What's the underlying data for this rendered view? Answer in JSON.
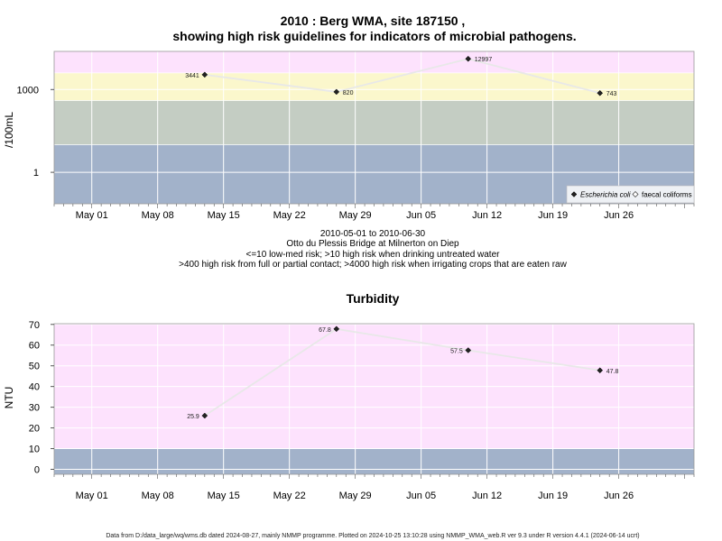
{
  "colors": {
    "pink": "#fde2fd",
    "yellow": "#fbf7cc",
    "greygreen": "#c4cdc3",
    "blue": "#a2b2ca",
    "line": "#e8e8e8"
  },
  "x_ticks": [
    "May 01",
    "May 08",
    "May 15",
    "May 22",
    "May 29",
    "Jun 05",
    "Jun 12",
    "Jun 19",
    "Jun 26"
  ],
  "caption": {
    "line1": "2010-05-01 to 2010-06-30",
    "line2": "Otto du Plessis Bridge at Milnerton on Diep",
    "line3": "<=10 low-med risk; >10 high risk when drinking untreated water",
    "line4": ">400 high risk from full or partial contact; >4000 high risk when irrigating crops that are eaten raw"
  },
  "footer": "Data from D:/data_large/wq/wms.db dated 2024-08-27, mainly NMMP programme. Plotted on 2024-10-25 13:10:28 using NMMP_WMA_web.R ver 9.3 under R version 4.4.1 (2024-06-14 ucrt)",
  "chart_data": [
    {
      "type": "line",
      "title_line1": "2010 : Berg WMA, site 187150 ,",
      "title_line2": "showing high risk guidelines for indicators of microbial pathogens.",
      "ylabel": "/100mL",
      "yscale": "log",
      "y_ticks": [
        "1",
        "1000"
      ],
      "x_date_range": [
        "2010-04-27",
        "2010-07-04"
      ],
      "bands": [
        {
          "from": 4000,
          "color": "pink"
        },
        {
          "from": 400,
          "to": 4000,
          "color": "yellow"
        },
        {
          "from": 10,
          "to": 400,
          "color": "greygreen"
        },
        {
          "to": 10,
          "color": "blue"
        }
      ],
      "series": [
        {
          "name": "Escherichia coli",
          "marker": "filled-diamond",
          "points": [
            {
              "x": "2010-05-13",
              "y": 3441,
              "label": "3441"
            },
            {
              "x": "2010-05-27",
              "y": 820,
              "label": "820"
            },
            {
              "x": "2010-06-10",
              "y": 12997,
              "label": "12997"
            },
            {
              "x": "2010-06-24",
              "y": 743,
              "label": "743"
            }
          ]
        },
        {
          "name": "faecal coliforms",
          "marker": "open-diamond",
          "points": []
        }
      ],
      "legend": {
        "position": "bottom-right",
        "items": [
          "Escherichia coli",
          "faecal coliforms"
        ]
      },
      "grid": true
    },
    {
      "type": "line",
      "title": "Turbidity",
      "ylabel": "NTU",
      "y_ticks": [
        "0",
        "10",
        "20",
        "30",
        "40",
        "50",
        "60",
        "70"
      ],
      "ylim": [
        -2,
        72
      ],
      "x_date_range": [
        "2010-04-27",
        "2010-07-04"
      ],
      "bands": [
        {
          "from": 10,
          "color": "pink"
        },
        {
          "to": 10,
          "color": "blue"
        }
      ],
      "series": [
        {
          "marker": "filled-diamond",
          "points": [
            {
              "x": "2010-05-13",
              "y": 25.9,
              "label": "25.9"
            },
            {
              "x": "2010-05-27",
              "y": 67.8,
              "label": "67.8"
            },
            {
              "x": "2010-06-10",
              "y": 57.5,
              "label": "57.5"
            },
            {
              "x": "2010-06-24",
              "y": 47.8,
              "label": "47.8"
            }
          ]
        }
      ],
      "grid": true
    }
  ]
}
